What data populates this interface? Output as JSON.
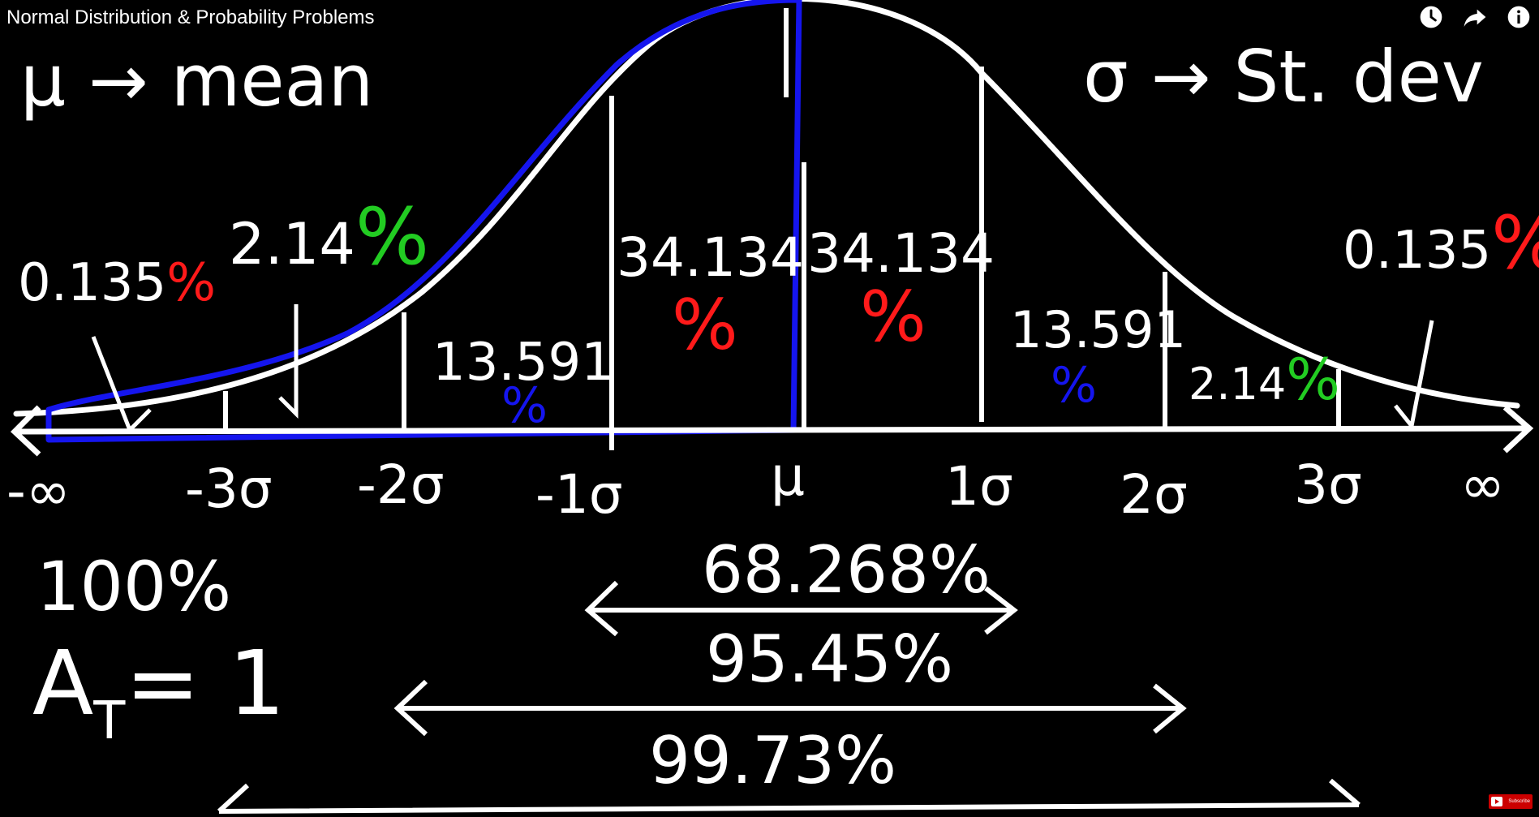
{
  "player": {
    "title": "Normal Distribution & Probability Problems",
    "actions": [
      {
        "icon": "clock-icon",
        "label": "Watch later"
      },
      {
        "icon": "share-icon",
        "label": "Share"
      },
      {
        "icon": "info-icon",
        "label": "Info"
      }
    ],
    "subscribe_label": "Subscribe"
  },
  "board": {
    "mean_def": "μ → mean",
    "sd_def": "σ → St. dev",
    "region_labels": {
      "far_left": {
        "num": "0.135",
        "pct": "%"
      },
      "left_2": {
        "num": "2.14",
        "pct": "%"
      },
      "left_3": {
        "num": "13.591",
        "pct": "%"
      },
      "left_4": {
        "num": "34.134",
        "pct": "%"
      },
      "right_4": {
        "num": "34.134",
        "pct": "%"
      },
      "right_3": {
        "num": "13.591",
        "pct": "%"
      },
      "right_2": {
        "num": "2.14",
        "pct": "%"
      },
      "far_right": {
        "num": "0.135",
        "pct": "%"
      }
    },
    "axis_labels": [
      "-∞",
      "-3σ",
      "-2σ",
      "-1σ",
      "μ",
      "1σ",
      "2σ",
      "3σ",
      "∞"
    ],
    "total_pct": "100%",
    "total_area": "A",
    "total_area_sub": "T",
    "total_area_value": "= 1",
    "range_1": "68.268%",
    "range_2": "95.45%",
    "range_3": "99.73%",
    "colors": {
      "ink": "#ffffff",
      "red": "#ff1a1a",
      "green": "#22cc22",
      "blue": "#1515ee"
    }
  }
}
